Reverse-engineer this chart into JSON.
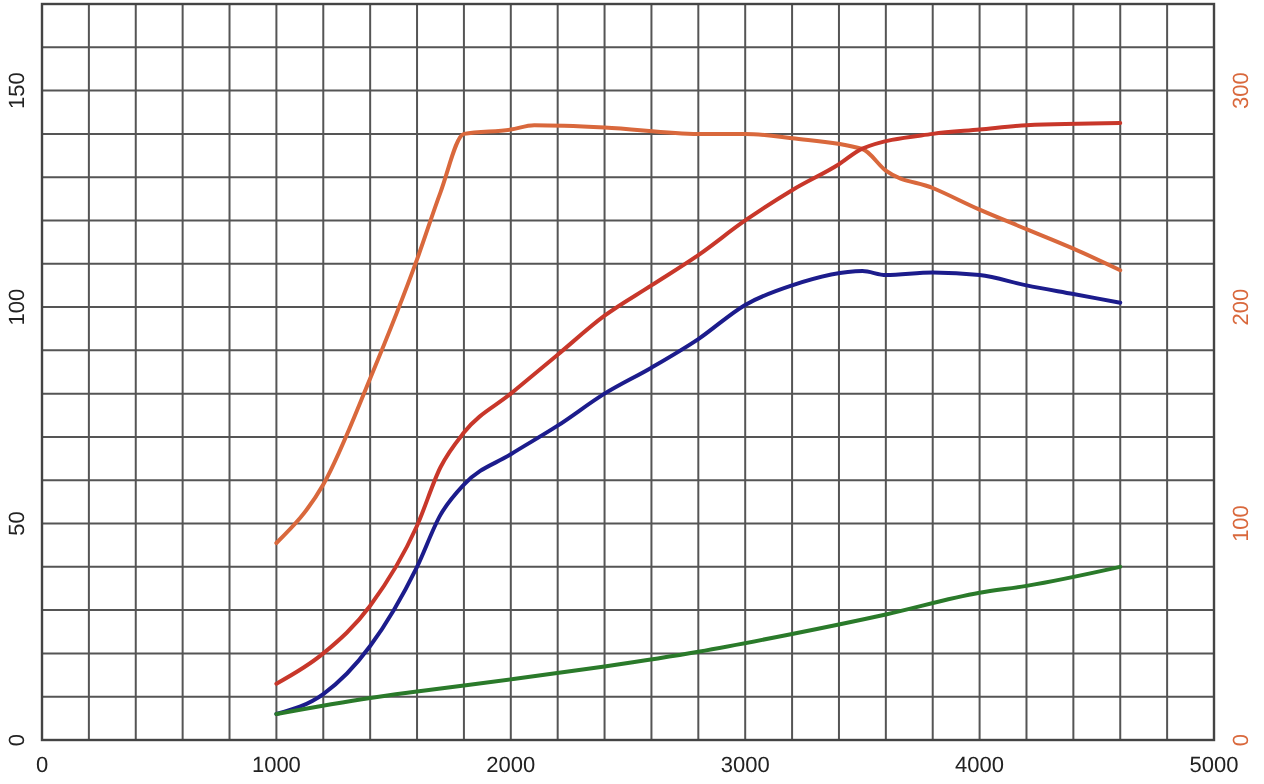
{
  "chart_data": {
    "type": "line",
    "xlim": [
      0,
      5000
    ],
    "xticks": [
      0,
      {
        "value": 200,
        "label": null
      },
      {
        "value": 400,
        "label": null
      },
      {
        "value": 600,
        "label": null
      },
      {
        "value": 800,
        "label": null
      },
      1000,
      {
        "value": 1200,
        "label": null
      },
      {
        "value": 1400,
        "label": null
      },
      {
        "value": 1600,
        "label": null
      },
      {
        "value": 1800,
        "label": null
      },
      2000,
      {
        "value": 2200,
        "label": null
      },
      {
        "value": 2400,
        "label": null
      },
      {
        "value": 2600,
        "label": null
      },
      {
        "value": 2800,
        "label": null
      },
      3000,
      {
        "value": 3200,
        "label": null
      },
      {
        "value": 3400,
        "label": null
      },
      {
        "value": 3600,
        "label": null
      },
      {
        "value": 3800,
        "label": null
      },
      4000,
      {
        "value": 4200,
        "label": null
      },
      {
        "value": 4400,
        "label": null
      },
      {
        "value": 4600,
        "label": null
      },
      {
        "value": 4800,
        "label": null
      },
      5000
    ],
    "ylim": [
      0,
      170
    ],
    "yticks": [
      0,
      {
        "value": 10,
        "label": null
      },
      {
        "value": 20,
        "label": null
      },
      {
        "value": 30,
        "label": null
      },
      {
        "value": 40,
        "label": null
      },
      50,
      {
        "value": 60,
        "label": null
      },
      {
        "value": 70,
        "label": null
      },
      {
        "value": 80,
        "label": null
      },
      {
        "value": 90,
        "label": null
      },
      100,
      {
        "value": 110,
        "label": null
      },
      {
        "value": 120,
        "label": null
      },
      {
        "value": 130,
        "label": null
      },
      {
        "value": 140,
        "label": null
      },
      150,
      {
        "value": 160,
        "label": null
      },
      {
        "value": 170,
        "label": null
      }
    ],
    "y2lim": [
      0,
      340
    ],
    "y2ticks": [
      0,
      100,
      200,
      300
    ],
    "grid": true,
    "marker": "none",
    "line_style": "solid",
    "series": [
      {
        "color": "#d9683c",
        "axis": "y2",
        "x": [
          1000,
          1200,
          1400,
          1600,
          1700,
          1800,
          2000,
          2100,
          2400,
          2800,
          3000,
          3200,
          3500,
          3600,
          3800,
          4000,
          4200,
          4400,
          4600
        ],
        "values": [
          91,
          118,
          167,
          222,
          253,
          280,
          282,
          284,
          283,
          280,
          280,
          278,
          273,
          263,
          255,
          245,
          236,
          227,
          217
        ]
      },
      {
        "color": "#c8372a",
        "x": [
          1000,
          1200,
          1400,
          1600,
          1700,
          1800,
          2000,
          2200,
          2400,
          2600,
          2800,
          3000,
          3200,
          3400,
          3500,
          3800,
          4000,
          4200,
          4600
        ],
        "values": [
          13,
          20,
          31,
          49.5,
          63,
          71,
          80,
          89,
          98,
          105,
          112,
          120,
          127,
          133,
          136.6,
          140,
          141,
          142,
          142.5
        ]
      },
      {
        "color": "#1c1c8c",
        "x": [
          1000,
          1200,
          1400,
          1600,
          1700,
          1800,
          2000,
          2200,
          2400,
          2600,
          2800,
          3000,
          3200,
          3500,
          3600,
          3800,
          4000,
          4200,
          4400,
          4600
        ],
        "values": [
          6,
          10.6,
          21.7,
          40,
          52,
          59,
          66,
          72.6,
          80,
          86,
          92.6,
          100.5,
          105,
          108.3,
          107.4,
          108,
          107.4,
          105,
          103,
          101
        ]
      },
      {
        "color": "#2a7a2a",
        "x": [
          1000,
          1400,
          1600,
          2000,
          2400,
          2800,
          3200,
          3600,
          4000,
          4200,
          4600
        ],
        "values": [
          6,
          9.7,
          11.2,
          14,
          17,
          20.4,
          24.5,
          29,
          34,
          35.6,
          40
        ]
      }
    ]
  }
}
